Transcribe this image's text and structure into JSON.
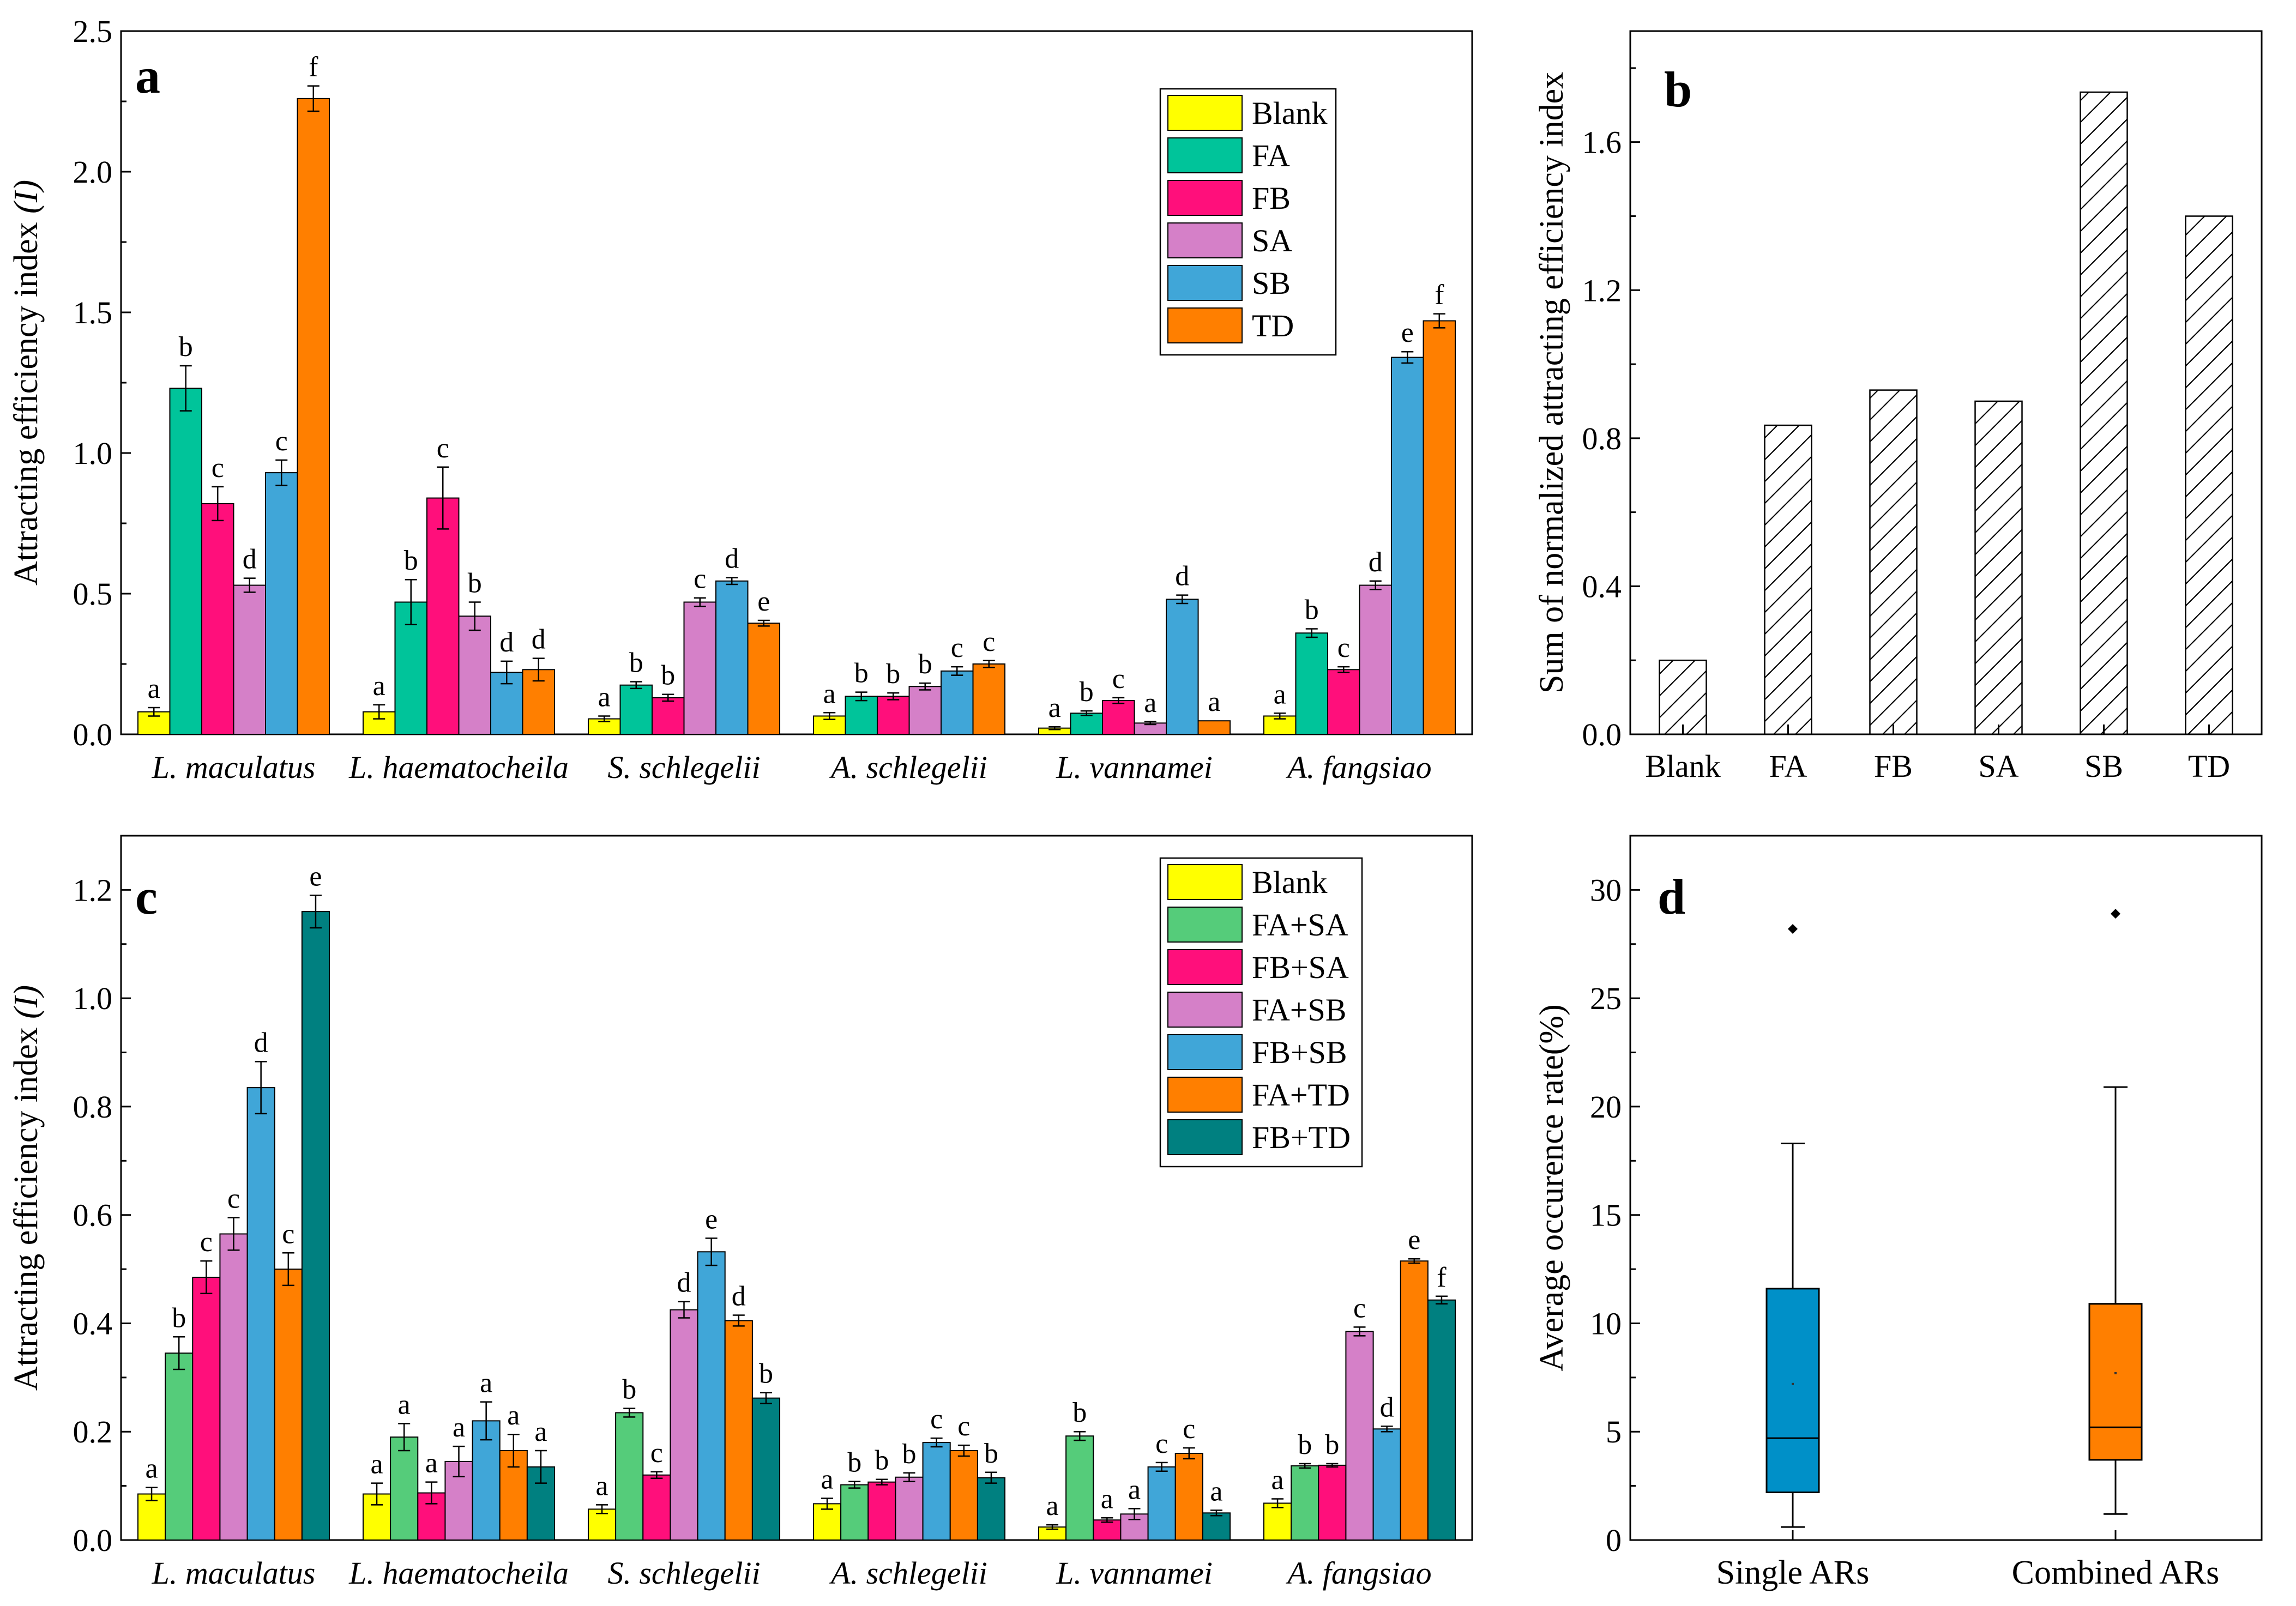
{
  "colors": {
    "Blank": "#ffff00",
    "FA": "#00c49a",
    "FB": "#ff0f7b",
    "SA": "#d580c8",
    "SB": "#40a6d8",
    "TD": "#ff7f00",
    "FA+SA": "#55cc7a",
    "FB+SA": "#ff0f7b",
    "FA+SB": "#d580c8",
    "FB+SB": "#40a6d8",
    "FA+TD": "#ff7f00",
    "FB+TD": "#008080",
    "box_single": "#0090c8",
    "box_combined": "#ff7f00"
  },
  "chart_data": [
    {
      "panel": "a",
      "type": "bar",
      "ylabel": "Attracting efficiency index",
      "ylabel_symbol": "(I)",
      "ylim": [
        0,
        2.5
      ],
      "yticks": [
        "0.0",
        "0.5",
        "1.0",
        "1.5",
        "2.0",
        "2.5"
      ],
      "grid": false,
      "legend_position": "top-right",
      "categories": [
        "L. maculatus",
        "L. haematocheila",
        "S. schlegelii",
        "A. schlegelii",
        "L. vannamei",
        "A. fangsiao"
      ],
      "series": [
        {
          "name": "Blank",
          "values": [
            0.08,
            0.08,
            0.055,
            0.065,
            0.022,
            0.065
          ],
          "errors": [
            0.015,
            0.025,
            0.01,
            0.012,
            0.005,
            0.01
          ],
          "letters": [
            "a",
            "a",
            "a",
            "a",
            "a",
            "a"
          ]
        },
        {
          "name": "FA",
          "values": [
            1.23,
            0.47,
            0.175,
            0.135,
            0.075,
            0.36
          ],
          "errors": [
            0.08,
            0.08,
            0.012,
            0.015,
            0.008,
            0.015
          ],
          "letters": [
            "b",
            "b",
            "b",
            "b",
            "b",
            "b"
          ]
        },
        {
          "name": "FB",
          "values": [
            0.82,
            0.84,
            0.13,
            0.135,
            0.12,
            0.23
          ],
          "errors": [
            0.06,
            0.11,
            0.012,
            0.012,
            0.01,
            0.01
          ],
          "letters": [
            "c",
            "c",
            "b",
            "b",
            "c",
            "c"
          ]
        },
        {
          "name": "SA",
          "values": [
            0.53,
            0.42,
            0.47,
            0.17,
            0.04,
            0.53
          ],
          "errors": [
            0.025,
            0.05,
            0.015,
            0.012,
            0.005,
            0.015
          ],
          "letters": [
            "d",
            "b",
            "c",
            "b",
            "a",
            "d"
          ]
        },
        {
          "name": "SB",
          "values": [
            0.93,
            0.22,
            0.545,
            0.225,
            0.48,
            1.34
          ],
          "errors": [
            0.045,
            0.04,
            0.012,
            0.015,
            0.015,
            0.02
          ],
          "letters": [
            "c",
            "d",
            "d",
            "c",
            "d",
            "e"
          ]
        },
        {
          "name": "TD",
          "values": [
            2.26,
            0.23,
            0.395,
            0.25,
            0.048,
            1.47
          ],
          "errors": [
            0.045,
            0.04,
            0.01,
            0.012,
            0.0,
            0.025
          ],
          "letters": [
            "f",
            "d",
            "e",
            "c",
            "a",
            "f"
          ]
        }
      ]
    },
    {
      "panel": "b",
      "type": "bar",
      "ylabel": "Sum of normalized attracting efficiency index",
      "ylim": [
        0,
        1.9
      ],
      "yticks": [
        "0.0",
        "0.4",
        "0.8",
        "1.2",
        "1.6"
      ],
      "grid": false,
      "fill": "hatched",
      "categories": [
        "Blank",
        "FA",
        "FB",
        "SA",
        "SB",
        "TD"
      ],
      "values": [
        0.2,
        0.835,
        0.93,
        0.9,
        1.735,
        1.4
      ]
    },
    {
      "panel": "c",
      "type": "bar",
      "ylabel": "Attracting efficiency index",
      "ylabel_symbol": "(I)",
      "ylim": [
        0,
        1.3
      ],
      "yticks": [
        "0.0",
        "0.2",
        "0.4",
        "0.6",
        "0.8",
        "1.0",
        "1.2"
      ],
      "grid": false,
      "legend_position": "top-right",
      "categories": [
        "L. maculatus",
        "L. haematocheila",
        "S. schlegelii",
        "A. schlegelii",
        "L. vannamei",
        "A. fangsiao"
      ],
      "series": [
        {
          "name": "Blank",
          "values": [
            0.085,
            0.085,
            0.057,
            0.067,
            0.024,
            0.068
          ],
          "errors": [
            0.012,
            0.02,
            0.008,
            0.01,
            0.004,
            0.008
          ],
          "letters": [
            "a",
            "a",
            "a",
            "a",
            "a",
            "a"
          ]
        },
        {
          "name": "FA+SA",
          "values": [
            0.345,
            0.19,
            0.235,
            0.102,
            0.192,
            0.137
          ],
          "errors": [
            0.03,
            0.025,
            0.008,
            0.006,
            0.008,
            0.004
          ],
          "letters": [
            "b",
            "a",
            "b",
            "b",
            "b",
            "b"
          ]
        },
        {
          "name": "FB+SA",
          "values": [
            0.485,
            0.087,
            0.12,
            0.107,
            0.037,
            0.138
          ],
          "errors": [
            0.03,
            0.02,
            0.006,
            0.005,
            0.004,
            0.003
          ],
          "letters": [
            "c",
            "a",
            "c",
            "b",
            "a",
            "b"
          ]
        },
        {
          "name": "FA+SB",
          "values": [
            0.565,
            0.145,
            0.425,
            0.116,
            0.048,
            0.385
          ],
          "errors": [
            0.03,
            0.028,
            0.015,
            0.008,
            0.01,
            0.008
          ],
          "letters": [
            "c",
            "a",
            "d",
            "b",
            "a",
            "c"
          ]
        },
        {
          "name": "FB+SB",
          "values": [
            0.835,
            0.22,
            0.532,
            0.18,
            0.135,
            0.205
          ],
          "errors": [
            0.048,
            0.035,
            0.025,
            0.008,
            0.008,
            0.005
          ],
          "letters": [
            "d",
            "a",
            "e",
            "c",
            "c",
            "d"
          ]
        },
        {
          "name": "FA+TD",
          "values": [
            0.5,
            0.165,
            0.405,
            0.165,
            0.16,
            0.515
          ],
          "errors": [
            0.03,
            0.03,
            0.01,
            0.01,
            0.01,
            0.004
          ],
          "letters": [
            "c",
            "a",
            "d",
            "c",
            "c",
            "e"
          ]
        },
        {
          "name": "FB+TD",
          "values": [
            1.16,
            0.135,
            0.262,
            0.115,
            0.05,
            0.443
          ],
          "errors": [
            0.03,
            0.03,
            0.01,
            0.01,
            0.005,
            0.007
          ],
          "letters": [
            "e",
            "a",
            "b",
            "b",
            "a",
            "f"
          ]
        }
      ]
    },
    {
      "panel": "d",
      "type": "box",
      "ylabel": "Average occurence rate(%)",
      "ylim": [
        0,
        32.5
      ],
      "yticks": [
        "0",
        "5",
        "10",
        "15",
        "20",
        "25",
        "30"
      ],
      "grid": false,
      "categories": [
        "Single ARs",
        "Combined ARs"
      ],
      "boxes": [
        {
          "name": "Single ARs",
          "min": 0.6,
          "q1": 2.2,
          "median": 4.7,
          "q3": 11.6,
          "max": 18.3,
          "mean": 7.2,
          "outliers": [
            28.2
          ]
        },
        {
          "name": "Combined ARs",
          "min": 1.2,
          "q1": 3.7,
          "median": 5.2,
          "q3": 10.9,
          "max": 20.9,
          "mean": 7.7,
          "outliers": [
            28.9
          ]
        }
      ]
    }
  ]
}
